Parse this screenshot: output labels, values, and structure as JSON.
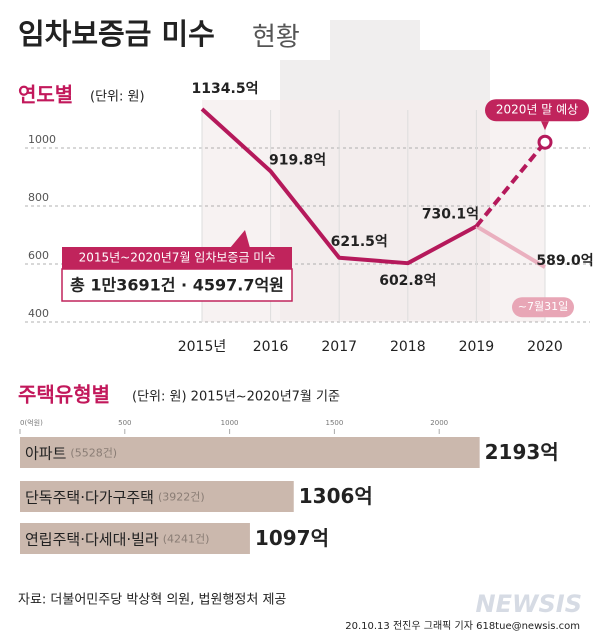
{
  "header": {
    "title": "임차보증금 미수",
    "title_suffix": "현황"
  },
  "chart_data": [
    {
      "type": "line",
      "section_title": "연도별",
      "unit": "(단위: 원)",
      "categories": [
        "2015년",
        "2016",
        "2017",
        "2018",
        "2019",
        "2020"
      ],
      "ylim": [
        400,
        1200
      ],
      "yticks": [
        400,
        600,
        800,
        1000
      ],
      "grid": true,
      "series": [
        {
          "color": "#b5195b",
          "values": [
            1134.5,
            919.8,
            621.5,
            602.8,
            730.1,
            null
          ],
          "value_labels": [
            "1134.5억",
            "919.8억",
            "621.5억",
            "602.8억",
            "730.1억",
            null
          ]
        },
        {
          "color": "#eab0bf",
          "values": [
            null,
            null,
            null,
            null,
            730.1,
            589.0
          ],
          "value_labels": [
            null,
            null,
            null,
            null,
            null,
            "589.0억"
          ],
          "note": "~7월31일"
        },
        {
          "color": "#b5195b",
          "dash": true,
          "marker": "end",
          "values": [
            null,
            null,
            null,
            null,
            730.1,
            1020
          ],
          "note": "2020년 말 예상"
        }
      ],
      "annotation": {
        "heading": "2015년~2020년7월 임차보증금 미수",
        "text": "총 1만3691건 · 4597.7억원"
      }
    },
    {
      "type": "hbar",
      "section_title": "주택유형별",
      "unit": "(단위: 원) 2015년~2020년7월 기준",
      "categories": [
        "아파트",
        "단독주택·다가구주택",
        "연립주택·다세대·빌라"
      ],
      "counts": [
        "(5528건)",
        "(3922건)",
        "(4241건)"
      ],
      "values": [
        2193,
        1306,
        1097
      ],
      "value_labels": [
        "2193억",
        "1306억",
        "1097억"
      ],
      "color": "#cbb8ad",
      "xlim": [
        0,
        2500
      ],
      "xticks": [
        {
          "value": 0,
          "label": "0(억원)"
        },
        500,
        1000,
        1500,
        2000
      ]
    }
  ],
  "footer": {
    "source": "자료: 더불어민주당 박상혁 의원, 법원행정처 제공",
    "credit": "20.10.13 전진우 그래픽 기자 618tue@newsis.com",
    "logo": "NEWSIS"
  }
}
